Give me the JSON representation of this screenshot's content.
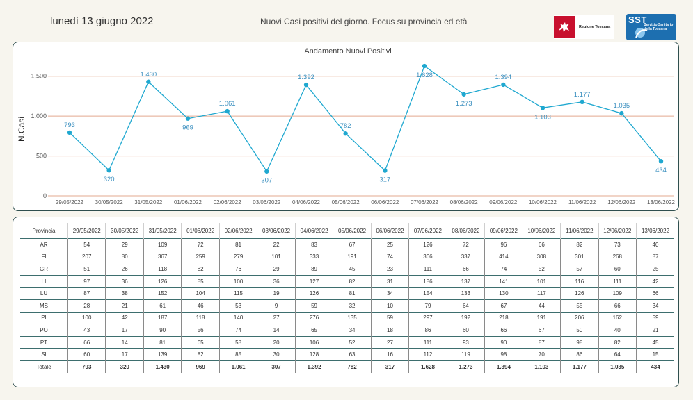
{
  "header": {
    "date": "lunedì 13 giugno 2022",
    "title": "Nuovi Casi positivi del giorno. Focus su provincia ed età",
    "logo_rt_text": "Regione Toscana",
    "logo_sst_letters": "SST",
    "logo_sst_text": "Servizio Sanitario della Toscana"
  },
  "colors": {
    "line": "#1fa8d0",
    "label": "#3a8fbf",
    "grid": "#e3a98f",
    "border": "#2f4f4f"
  },
  "chart_data": {
    "type": "line",
    "title": "Andamento Nuovi Positivi",
    "ylabel": "N.Casi",
    "xlabel": "",
    "ylim": [
      0,
      1750
    ],
    "yticks": [
      0,
      500,
      1000,
      1500
    ],
    "ytick_labels": [
      "0",
      "500",
      "1.000",
      "1.500"
    ],
    "grid": true,
    "categories": [
      "29/05/2022",
      "30/05/2022",
      "31/05/2022",
      "01/06/2022",
      "02/06/2022",
      "03/06/2022",
      "04/06/2022",
      "05/06/2022",
      "06/06/2022",
      "07/06/2022",
      "08/06/2022",
      "09/06/2022",
      "10/06/2022",
      "11/06/2022",
      "12/06/2022",
      "13/06/2022"
    ],
    "values": [
      793,
      320,
      1430,
      969,
      1061,
      307,
      1392,
      782,
      317,
      1628,
      1273,
      1394,
      1103,
      1177,
      1035,
      434
    ],
    "value_labels": [
      "793",
      "320",
      "1.430",
      "969",
      "1.061",
      "307",
      "1.392",
      "782",
      "317",
      "1.628",
      "1.273",
      "1.394",
      "1.103",
      "1.177",
      "1.035",
      "434"
    ],
    "label_positions": [
      "above",
      "below",
      "above",
      "below",
      "above",
      "below",
      "above",
      "above",
      "below",
      "below",
      "below",
      "above",
      "below",
      "above",
      "above",
      "below"
    ]
  },
  "table": {
    "header_label": "Provincia",
    "columns": [
      "29/05/2022",
      "30/05/2022",
      "31/05/2022",
      "01/06/2022",
      "02/06/2022",
      "03/06/2022",
      "04/06/2022",
      "05/06/2022",
      "06/06/2022",
      "07/06/2022",
      "08/06/2022",
      "09/06/2022",
      "10/06/2022",
      "11/06/2022",
      "12/06/2022",
      "13/06/2022"
    ],
    "rows": [
      {
        "name": "AR",
        "values": [
          "54",
          "29",
          "109",
          "72",
          "81",
          "22",
          "83",
          "67",
          "25",
          "126",
          "72",
          "96",
          "66",
          "82",
          "73",
          "40"
        ]
      },
      {
        "name": "FI",
        "values": [
          "207",
          "80",
          "367",
          "259",
          "279",
          "101",
          "333",
          "191",
          "74",
          "366",
          "337",
          "414",
          "308",
          "301",
          "268",
          "87"
        ]
      },
      {
        "name": "GR",
        "values": [
          "51",
          "26",
          "118",
          "82",
          "76",
          "29",
          "89",
          "45",
          "23",
          "111",
          "66",
          "74",
          "52",
          "57",
          "60",
          "25"
        ]
      },
      {
        "name": "LI",
        "values": [
          "97",
          "36",
          "126",
          "85",
          "100",
          "36",
          "127",
          "82",
          "31",
          "186",
          "137",
          "141",
          "101",
          "116",
          "111",
          "42"
        ]
      },
      {
        "name": "LU",
        "values": [
          "87",
          "38",
          "152",
          "104",
          "115",
          "19",
          "126",
          "81",
          "34",
          "154",
          "133",
          "130",
          "117",
          "126",
          "109",
          "66"
        ]
      },
      {
        "name": "MS",
        "values": [
          "28",
          "21",
          "61",
          "46",
          "53",
          "9",
          "59",
          "32",
          "10",
          "79",
          "64",
          "67",
          "44",
          "55",
          "66",
          "34"
        ]
      },
      {
        "name": "PI",
        "values": [
          "100",
          "42",
          "187",
          "118",
          "140",
          "27",
          "276",
          "135",
          "59",
          "297",
          "192",
          "218",
          "191",
          "206",
          "162",
          "59"
        ]
      },
      {
        "name": "PO",
        "values": [
          "43",
          "17",
          "90",
          "56",
          "74",
          "14",
          "65",
          "34",
          "18",
          "86",
          "60",
          "66",
          "67",
          "50",
          "40",
          "21"
        ]
      },
      {
        "name": "PT",
        "values": [
          "66",
          "14",
          "81",
          "65",
          "58",
          "20",
          "106",
          "52",
          "27",
          "111",
          "93",
          "90",
          "87",
          "98",
          "82",
          "45"
        ]
      },
      {
        "name": "SI",
        "values": [
          "60",
          "17",
          "139",
          "82",
          "85",
          "30",
          "128",
          "63",
          "16",
          "112",
          "119",
          "98",
          "70",
          "86",
          "64",
          "15"
        ]
      }
    ],
    "total": {
      "name": "Totale",
      "values": [
        "793",
        "320",
        "1.430",
        "969",
        "1.061",
        "307",
        "1.392",
        "782",
        "317",
        "1.628",
        "1.273",
        "1.394",
        "1.103",
        "1.177",
        "1.035",
        "434"
      ]
    }
  }
}
